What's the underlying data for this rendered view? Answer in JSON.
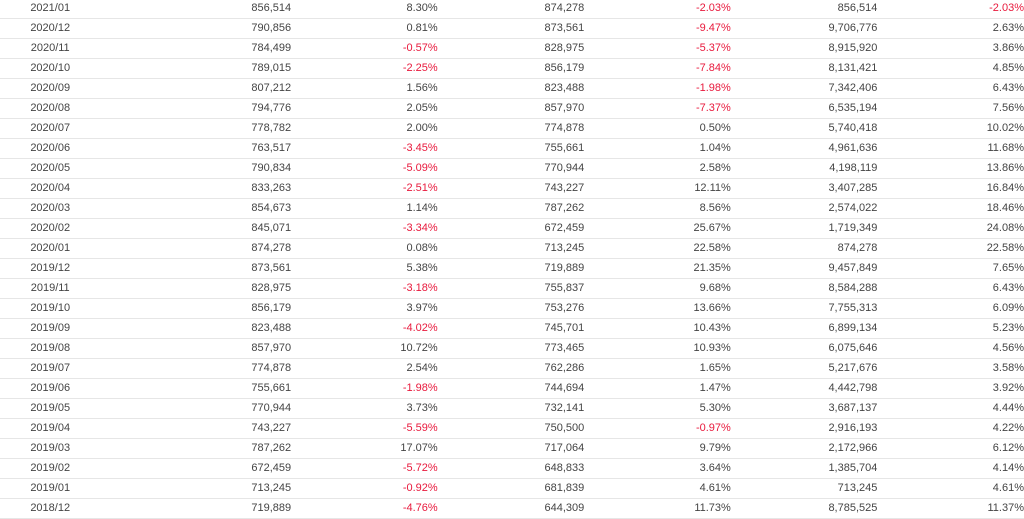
{
  "colors": {
    "negative": "#e8193c",
    "text": "#444444",
    "rule": "#e6e6e6"
  },
  "rows": [
    [
      "2021/01",
      "856,514",
      "8.30%",
      "874,278",
      "-2.03%",
      "856,514",
      "-2.03%"
    ],
    [
      "2020/12",
      "790,856",
      "0.81%",
      "873,561",
      "-9.47%",
      "9,706,776",
      "2.63%"
    ],
    [
      "2020/11",
      "784,499",
      "-0.57%",
      "828,975",
      "-5.37%",
      "8,915,920",
      "3.86%"
    ],
    [
      "2020/10",
      "789,015",
      "-2.25%",
      "856,179",
      "-7.84%",
      "8,131,421",
      "4.85%"
    ],
    [
      "2020/09",
      "807,212",
      "1.56%",
      "823,488",
      "-1.98%",
      "7,342,406",
      "6.43%"
    ],
    [
      "2020/08",
      "794,776",
      "2.05%",
      "857,970",
      "-7.37%",
      "6,535,194",
      "7.56%"
    ],
    [
      "2020/07",
      "778,782",
      "2.00%",
      "774,878",
      "0.50%",
      "5,740,418",
      "10.02%"
    ],
    [
      "2020/06",
      "763,517",
      "-3.45%",
      "755,661",
      "1.04%",
      "4,961,636",
      "11.68%"
    ],
    [
      "2020/05",
      "790,834",
      "-5.09%",
      "770,944",
      "2.58%",
      "4,198,119",
      "13.86%"
    ],
    [
      "2020/04",
      "833,263",
      "-2.51%",
      "743,227",
      "12.11%",
      "3,407,285",
      "16.84%"
    ],
    [
      "2020/03",
      "854,673",
      "1.14%",
      "787,262",
      "8.56%",
      "2,574,022",
      "18.46%"
    ],
    [
      "2020/02",
      "845,071",
      "-3.34%",
      "672,459",
      "25.67%",
      "1,719,349",
      "24.08%"
    ],
    [
      "2020/01",
      "874,278",
      "0.08%",
      "713,245",
      "22.58%",
      "874,278",
      "22.58%"
    ],
    [
      "2019/12",
      "873,561",
      "5.38%",
      "719,889",
      "21.35%",
      "9,457,849",
      "7.65%"
    ],
    [
      "2019/11",
      "828,975",
      "-3.18%",
      "755,837",
      "9.68%",
      "8,584,288",
      "6.43%"
    ],
    [
      "2019/10",
      "856,179",
      "3.97%",
      "753,276",
      "13.66%",
      "7,755,313",
      "6.09%"
    ],
    [
      "2019/09",
      "823,488",
      "-4.02%",
      "745,701",
      "10.43%",
      "6,899,134",
      "5.23%"
    ],
    [
      "2019/08",
      "857,970",
      "10.72%",
      "773,465",
      "10.93%",
      "6,075,646",
      "4.56%"
    ],
    [
      "2019/07",
      "774,878",
      "2.54%",
      "762,286",
      "1.65%",
      "5,217,676",
      "3.58%"
    ],
    [
      "2019/06",
      "755,661",
      "-1.98%",
      "744,694",
      "1.47%",
      "4,442,798",
      "3.92%"
    ],
    [
      "2019/05",
      "770,944",
      "3.73%",
      "732,141",
      "5.30%",
      "3,687,137",
      "4.44%"
    ],
    [
      "2019/04",
      "743,227",
      "-5.59%",
      "750,500",
      "-0.97%",
      "2,916,193",
      "4.22%"
    ],
    [
      "2019/03",
      "787,262",
      "17.07%",
      "717,064",
      "9.79%",
      "2,172,966",
      "6.12%"
    ],
    [
      "2019/02",
      "672,459",
      "-5.72%",
      "648,833",
      "3.64%",
      "1,385,704",
      "4.14%"
    ],
    [
      "2019/01",
      "713,245",
      "-0.92%",
      "681,839",
      "4.61%",
      "713,245",
      "4.61%"
    ],
    [
      "2018/12",
      "719,889",
      "-4.76%",
      "644,309",
      "11.73%",
      "8,785,525",
      "11.37%"
    ]
  ]
}
